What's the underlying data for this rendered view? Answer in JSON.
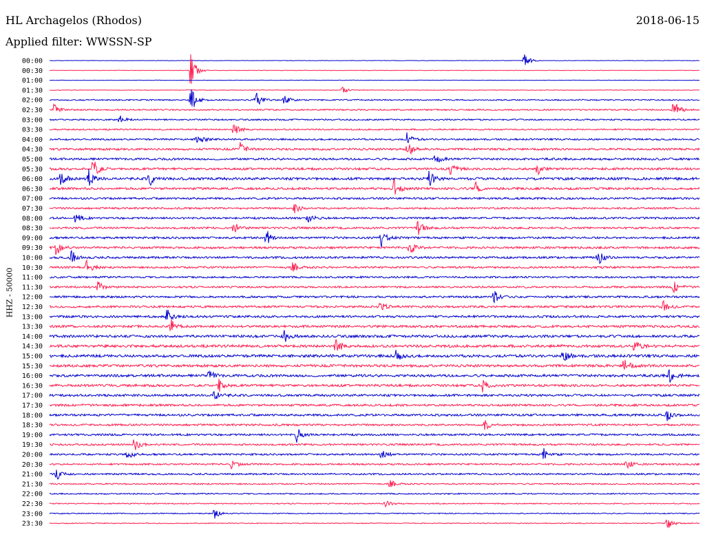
{
  "header": {
    "station": "HL Archagelos (Rhodos)",
    "filter": "Applied filter: WWSSN-SP",
    "date": "2018-06-15"
  },
  "colors": {
    "even_row": "#0000cc",
    "odd_row": "#ff1a4d"
  },
  "chart_data": {
    "type": "helicorder",
    "title": "HL Archagelos (Rhodos)",
    "subtitle": "Applied filter: WWSSN-SP",
    "date": "2018-06-15",
    "ylabel": "HHZ - 50000",
    "row_interval_minutes": 30,
    "row_labels": [
      "00:00",
      "00:30",
      "01:00",
      "01:30",
      "02:00",
      "02:30",
      "03:00",
      "03:30",
      "04:00",
      "04:30",
      "05:00",
      "05:30",
      "06:00",
      "06:30",
      "07:00",
      "07:30",
      "08:00",
      "08:30",
      "09:00",
      "09:30",
      "10:00",
      "10:30",
      "11:00",
      "11:30",
      "12:00",
      "12:30",
      "13:00",
      "13:30",
      "14:00",
      "14:30",
      "15:00",
      "15:30",
      "16:00",
      "16:30",
      "17:00",
      "17:30",
      "18:00",
      "18:30",
      "19:00",
      "19:30",
      "20:00",
      "20:30",
      "21:00",
      "21:30",
      "22:00",
      "22:30",
      "23:00",
      "23:30"
    ],
    "series_colors": [
      "#0000cc",
      "#ff1a4d"
    ],
    "noise_level": [
      0.3,
      0.35,
      0.3,
      0.4,
      0.9,
      1.0,
      1.0,
      1.0,
      1.2,
      1.5,
      1.5,
      1.6,
      1.8,
      1.6,
      1.4,
      1.3,
      1.4,
      1.4,
      1.5,
      1.5,
      1.5,
      1.4,
      1.3,
      1.3,
      1.4,
      1.5,
      1.6,
      1.7,
      1.8,
      1.9,
      1.9,
      1.8,
      1.8,
      1.7,
      1.6,
      1.5,
      1.5,
      1.4,
      1.4,
      1.3,
      1.3,
      1.2,
      1.2,
      1.0,
      0.9,
      0.8,
      0.7,
      0.6
    ],
    "events": [
      {
        "row": 0,
        "minute": 21.9,
        "amplitude": 12
      },
      {
        "row": 1,
        "minute": 6.5,
        "amplitude": 28
      },
      {
        "row": 3,
        "minute": 13.5,
        "amplitude": 6
      },
      {
        "row": 4,
        "minute": 6.5,
        "amplitude": 22
      },
      {
        "row": 4,
        "minute": 9.5,
        "amplitude": 14
      },
      {
        "row": 4,
        "minute": 10.8,
        "amplitude": 10
      },
      {
        "row": 5,
        "minute": 0.2,
        "amplitude": 8
      },
      {
        "row": 5,
        "minute": 28.8,
        "amplitude": 16
      },
      {
        "row": 6,
        "minute": 3.2,
        "amplitude": 8
      },
      {
        "row": 7,
        "minute": 8.5,
        "amplitude": 14
      },
      {
        "row": 8,
        "minute": 6.8,
        "amplitude": 12
      },
      {
        "row": 8,
        "minute": 16.5,
        "amplitude": 10
      },
      {
        "row": 9,
        "minute": 8.8,
        "amplitude": 10
      },
      {
        "row": 9,
        "minute": 16.5,
        "amplitude": 14
      },
      {
        "row": 10,
        "minute": 17.8,
        "amplitude": 10
      },
      {
        "row": 11,
        "minute": 2.0,
        "amplitude": 16
      },
      {
        "row": 11,
        "minute": 18.5,
        "amplitude": 12
      },
      {
        "row": 11,
        "minute": 22.5,
        "amplitude": 10
      },
      {
        "row": 12,
        "minute": 0.5,
        "amplitude": 12
      },
      {
        "row": 12,
        "minute": 1.8,
        "amplitude": 14
      },
      {
        "row": 12,
        "minute": 4.6,
        "amplitude": 12
      },
      {
        "row": 12,
        "minute": 17.5,
        "amplitude": 12
      },
      {
        "row": 13,
        "minute": 15.9,
        "amplitude": 14
      },
      {
        "row": 13,
        "minute": 19.6,
        "amplitude": 12
      },
      {
        "row": 15,
        "minute": 11.3,
        "amplitude": 8
      },
      {
        "row": 16,
        "minute": 1.2,
        "amplitude": 8
      },
      {
        "row": 16,
        "minute": 11.9,
        "amplitude": 10
      },
      {
        "row": 17,
        "minute": 8.5,
        "amplitude": 10
      },
      {
        "row": 17,
        "minute": 17.0,
        "amplitude": 12
      },
      {
        "row": 18,
        "minute": 10.0,
        "amplitude": 12
      },
      {
        "row": 18,
        "minute": 15.3,
        "amplitude": 14
      },
      {
        "row": 19,
        "minute": 0.3,
        "amplitude": 12
      },
      {
        "row": 19,
        "minute": 16.6,
        "amplitude": 12
      },
      {
        "row": 20,
        "minute": 1.0,
        "amplitude": 12
      },
      {
        "row": 20,
        "minute": 25.3,
        "amplitude": 12
      },
      {
        "row": 21,
        "minute": 1.7,
        "amplitude": 12
      },
      {
        "row": 21,
        "minute": 11.2,
        "amplitude": 10
      },
      {
        "row": 23,
        "minute": 2.2,
        "amplitude": 10
      },
      {
        "row": 23,
        "minute": 28.8,
        "amplitude": 10
      },
      {
        "row": 24,
        "minute": 20.5,
        "amplitude": 10
      },
      {
        "row": 25,
        "minute": 15.2,
        "amplitude": 10
      },
      {
        "row": 25,
        "minute": 28.3,
        "amplitude": 12
      },
      {
        "row": 26,
        "minute": 5.4,
        "amplitude": 12
      },
      {
        "row": 27,
        "minute": 5.6,
        "amplitude": 10
      },
      {
        "row": 28,
        "minute": 10.8,
        "amplitude": 12
      },
      {
        "row": 29,
        "minute": 13.2,
        "amplitude": 14
      },
      {
        "row": 29,
        "minute": 27.0,
        "amplitude": 12
      },
      {
        "row": 30,
        "minute": 16.0,
        "amplitude": 10
      },
      {
        "row": 30,
        "minute": 23.7,
        "amplitude": 10
      },
      {
        "row": 31,
        "minute": 26.5,
        "amplitude": 12
      },
      {
        "row": 32,
        "minute": 7.3,
        "amplitude": 10
      },
      {
        "row": 32,
        "minute": 28.6,
        "amplitude": 12
      },
      {
        "row": 33,
        "minute": 7.8,
        "amplitude": 12
      },
      {
        "row": 33,
        "minute": 20.0,
        "amplitude": 10
      },
      {
        "row": 34,
        "minute": 7.6,
        "amplitude": 10
      },
      {
        "row": 36,
        "minute": 28.5,
        "amplitude": 8
      },
      {
        "row": 37,
        "minute": 20.1,
        "amplitude": 8
      },
      {
        "row": 38,
        "minute": 11.4,
        "amplitude": 12
      },
      {
        "row": 39,
        "minute": 3.9,
        "amplitude": 10
      },
      {
        "row": 40,
        "minute": 3.6,
        "amplitude": 10
      },
      {
        "row": 40,
        "minute": 15.3,
        "amplitude": 10
      },
      {
        "row": 40,
        "minute": 22.8,
        "amplitude": 10
      },
      {
        "row": 41,
        "minute": 8.4,
        "amplitude": 8
      },
      {
        "row": 41,
        "minute": 26.6,
        "amplitude": 10
      },
      {
        "row": 42,
        "minute": 0.3,
        "amplitude": 10
      },
      {
        "row": 43,
        "minute": 15.7,
        "amplitude": 8
      },
      {
        "row": 45,
        "minute": 15.5,
        "amplitude": 6
      },
      {
        "row": 46,
        "minute": 7.6,
        "amplitude": 8
      },
      {
        "row": 47,
        "minute": 28.5,
        "amplitude": 10
      }
    ]
  }
}
